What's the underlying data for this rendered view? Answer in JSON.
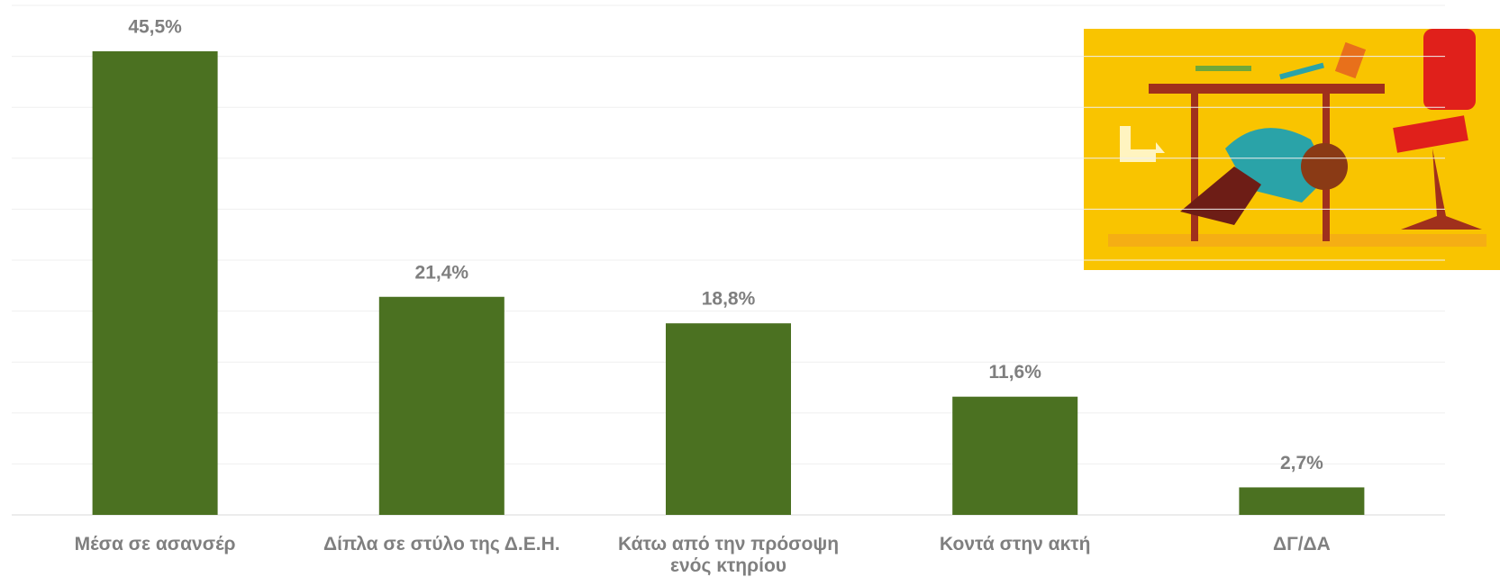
{
  "chart_data": {
    "type": "bar",
    "categories": [
      "Μέσα σε ασανσέρ",
      "Δίπλα σε στύλο της Δ.Ε.Η.",
      "Κάτω από την πρόσοψη ενός κτηρίου",
      "Κοντά στην ακτή",
      "ΔΓ/ΔΑ"
    ],
    "values": [
      45.5,
      21.4,
      18.8,
      11.6,
      2.7
    ],
    "value_labels": [
      "45,5%",
      "21,4%",
      "18,8%",
      "11,6%",
      "2,7%"
    ],
    "color": "#4b7121",
    "ylim": [
      0,
      50
    ],
    "yticks": [
      0,
      5,
      10,
      15,
      20,
      25,
      30,
      35,
      40,
      45,
      50
    ],
    "grid": true
  }
}
